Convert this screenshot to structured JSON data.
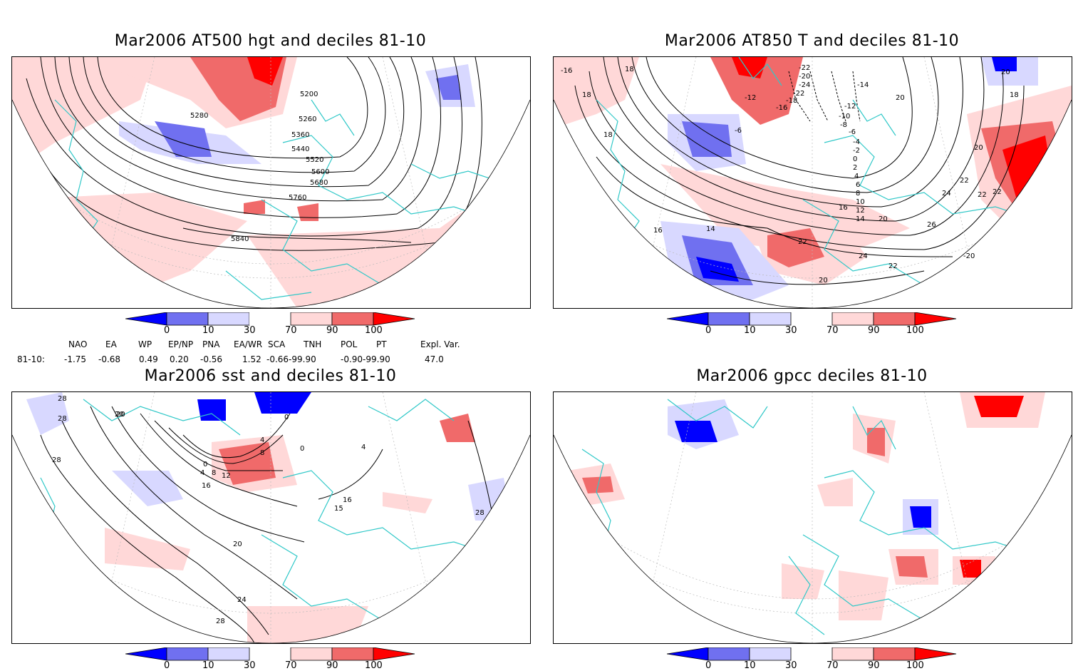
{
  "colors": {
    "dark_blue": "#0000ff",
    "mid_blue": "#7070f0",
    "light_blue": "#d8d8ff",
    "light_red": "#ffd8d8",
    "mid_red": "#f06a6a",
    "dark_red": "#ff0000",
    "coast": "#30c8c8",
    "contour": "#000000"
  },
  "panels": [
    {
      "title": "Mar2006 AT500 hgt and deciles 81-10",
      "contour_labels": [
        "5200",
        "5280",
        "5260",
        "5360",
        "5440",
        "5520",
        "5600",
        "5680",
        "5760",
        "5840"
      ]
    },
    {
      "title": "Mar2006 AT850 T and deciles 81-10",
      "contour_labels": [
        "-16",
        "18",
        "18",
        "18",
        "-22",
        "-20",
        "-24",
        "-22",
        "-18",
        "-16",
        "-12",
        "-14",
        "-12",
        "-10",
        "-8",
        "-6",
        "-6",
        "-4",
        "-2",
        "0",
        "2",
        "4",
        "6",
        "8",
        "10",
        "12",
        "14",
        "16",
        "20",
        "22",
        "24",
        "20",
        "22",
        "26",
        "22",
        "24",
        "22",
        "20",
        "14",
        "16",
        "18",
        "20",
        "20",
        "22",
        "-20"
      ]
    },
    {
      "title": "Mar2006 sst and deciles 81-10",
      "contour_labels": [
        "28",
        "28",
        "20",
        "28",
        "0",
        "4",
        "8",
        "12",
        "16",
        "0",
        "4",
        "8",
        "0",
        "4",
        "15",
        "16",
        "20",
        "24",
        "28",
        "28",
        "20"
      ]
    },
    {
      "title": "Mar2006 gpcc deciles 81-10",
      "contour_labels": []
    }
  ],
  "colorbar": {
    "ticks": [
      "0",
      "10",
      "30",
      "70",
      "90",
      "100"
    ]
  },
  "indices": {
    "headers": [
      "NAO",
      "EA",
      "WP",
      "EP/NP",
      "PNA",
      "EA/WR",
      "SCA",
      "TNH",
      "POL",
      "PT",
      "Expl. Var."
    ],
    "row_label": "81-10:",
    "values": [
      "-1.75",
      "-0.68",
      "0.49",
      "0.20",
      "-0.56",
      "1.52",
      "-0.66-99.90",
      "-0.90-99.90",
      "47.0"
    ]
  }
}
